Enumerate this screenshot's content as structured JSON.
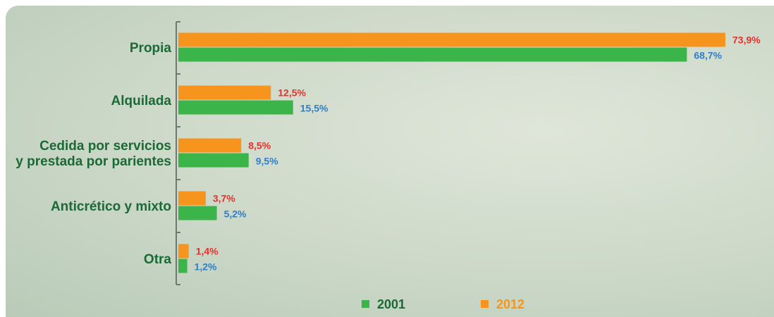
{
  "chart_data": {
    "type": "bar",
    "orientation": "horizontal",
    "categories": [
      [
        "Propia"
      ],
      [
        "Alquilada"
      ],
      [
        "Cedida por servicios",
        "y prestada por parientes"
      ],
      [
        "Anticrético y mixto"
      ],
      [
        "Otra"
      ]
    ],
    "series": [
      {
        "name": "2012",
        "color": "#f7941d",
        "label_color": "#e5322d",
        "values": [
          73.9,
          12.5,
          8.5,
          3.7,
          1.4
        ],
        "labels": [
          "73,9%",
          "12,5%",
          "8,5%",
          "3,7%",
          "1,4%"
        ]
      },
      {
        "name": "2001",
        "color": "#3bb54a",
        "label_color": "#2f7fc8",
        "values": [
          68.7,
          15.5,
          9.5,
          5.2,
          1.2
        ],
        "labels": [
          "68,7%",
          "15,5%",
          "9,5%",
          "5,2%",
          "1,2%"
        ]
      }
    ],
    "xlim": [
      0,
      73.9
    ],
    "grid": false,
    "legend": {
      "position": "bottom-center",
      "order": [
        "2001",
        "2012"
      ]
    }
  }
}
